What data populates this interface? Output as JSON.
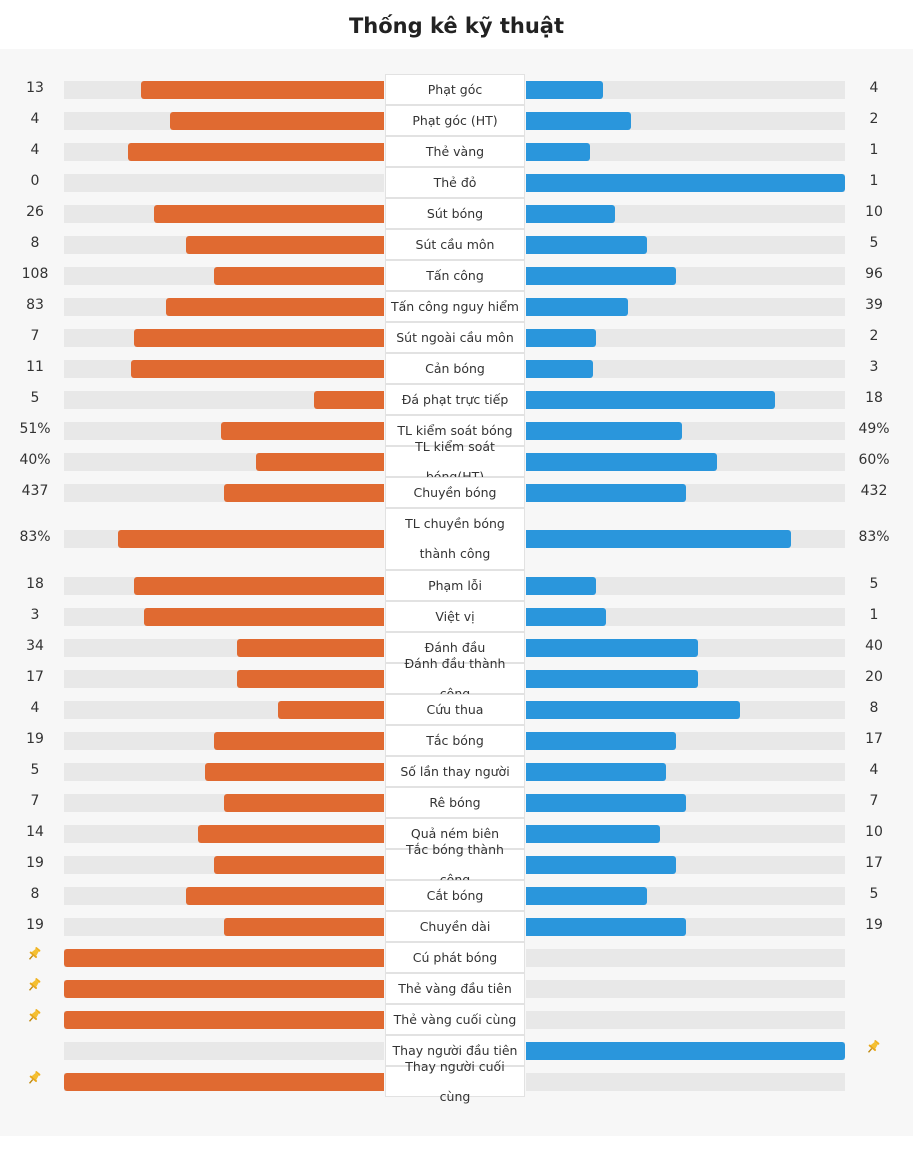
{
  "title": "Thống kê kỹ thuật",
  "colors": {
    "home": "#e06a31",
    "away": "#2a96dc",
    "track": "#e8e8e8"
  },
  "chart_data": {
    "type": "bar",
    "orientation": "diverging-horizontal",
    "series": [
      {
        "name": "home",
        "side": "left"
      },
      {
        "name": "away",
        "side": "right"
      }
    ],
    "rows": [
      {
        "label": "Phạt góc",
        "home": "13",
        "away": "4",
        "home_share": 0.76,
        "away_share": 0.24
      },
      {
        "label": "Phạt góc (HT)",
        "home": "4",
        "away": "2",
        "home_share": 0.67,
        "away_share": 0.33
      },
      {
        "label": "Thẻ vàng",
        "home": "4",
        "away": "1",
        "home_share": 0.8,
        "away_share": 0.2
      },
      {
        "label": "Thẻ đỏ",
        "home": "0",
        "away": "1",
        "home_share": 0,
        "away_share": 1
      },
      {
        "label": "Sút bóng",
        "home": "26",
        "away": "10",
        "home_share": 0.72,
        "away_share": 0.28
      },
      {
        "label": "Sút cầu môn",
        "home": "8",
        "away": "5",
        "home_share": 0.62,
        "away_share": 0.38
      },
      {
        "label": "Tấn công",
        "home": "108",
        "away": "96",
        "home_share": 0.53,
        "away_share": 0.47
      },
      {
        "label": "Tấn công nguy hiểm",
        "home": "83",
        "away": "39",
        "home_share": 0.68,
        "away_share": 0.32
      },
      {
        "label": "Sút ngoài cầu môn",
        "home": "7",
        "away": "2",
        "home_share": 0.78,
        "away_share": 0.22
      },
      {
        "label": "Cản bóng",
        "home": "11",
        "away": "3",
        "home_share": 0.79,
        "away_share": 0.21
      },
      {
        "label": "Đá phạt trực tiếp",
        "home": "5",
        "away": "18",
        "home_share": 0.22,
        "away_share": 0.78
      },
      {
        "label": "TL kiểm soát bóng",
        "home": "51%",
        "away": "49%",
        "home_share": 0.51,
        "away_share": 0.49
      },
      {
        "label": "TL kiểm soát bóng(HT)",
        "home": "40%",
        "away": "60%",
        "home_share": 0.4,
        "away_share": 0.6
      },
      {
        "label": "Chuyền bóng",
        "home": "437",
        "away": "432",
        "home_share": 0.5,
        "away_share": 0.5
      },
      {
        "label": "TL chuyền bóng thành công",
        "home": "83%",
        "away": "83%",
        "home_share": 0.83,
        "away_share": 0.83,
        "tall": true
      },
      {
        "label": "Phạm lỗi",
        "home": "18",
        "away": "5",
        "home_share": 0.78,
        "away_share": 0.22
      },
      {
        "label": "Việt vị",
        "home": "3",
        "away": "1",
        "home_share": 0.75,
        "away_share": 0.25
      },
      {
        "label": "Đánh đầu",
        "home": "34",
        "away": "40",
        "home_share": 0.46,
        "away_share": 0.54
      },
      {
        "label": "Đánh đầu thành công",
        "home": "17",
        "away": "20",
        "home_share": 0.46,
        "away_share": 0.54
      },
      {
        "label": "Cứu thua",
        "home": "4",
        "away": "8",
        "home_share": 0.33,
        "away_share": 0.67
      },
      {
        "label": "Tắc bóng",
        "home": "19",
        "away": "17",
        "home_share": 0.53,
        "away_share": 0.47
      },
      {
        "label": "Số lần thay người",
        "home": "5",
        "away": "4",
        "home_share": 0.56,
        "away_share": 0.44
      },
      {
        "label": "Rê bóng",
        "home": "7",
        "away": "7",
        "home_share": 0.5,
        "away_share": 0.5
      },
      {
        "label": "Quả ném biên",
        "home": "14",
        "away": "10",
        "home_share": 0.58,
        "away_share": 0.42
      },
      {
        "label": "Tắc bóng thành công",
        "home": "19",
        "away": "17",
        "home_share": 0.53,
        "away_share": 0.47
      },
      {
        "label": "Cắt bóng",
        "home": "8",
        "away": "5",
        "home_share": 0.62,
        "away_share": 0.38
      },
      {
        "label": "Chuyền dài",
        "home": "19",
        "away": "19",
        "home_share": 0.5,
        "away_share": 0.5
      },
      {
        "label": "Cú phát bóng",
        "home": "",
        "away": "",
        "home_share": 1,
        "away_share": 0,
        "pin": "home"
      },
      {
        "label": "Thẻ vàng đầu tiên",
        "home": "",
        "away": "",
        "home_share": 1,
        "away_share": 0,
        "pin": "home"
      },
      {
        "label": "Thẻ vàng cuối cùng",
        "home": "",
        "away": "",
        "home_share": 1,
        "away_share": 0,
        "pin": "home"
      },
      {
        "label": "Thay người đầu tiên",
        "home": "",
        "away": "",
        "home_share": 0,
        "away_share": 1,
        "pin": "away"
      },
      {
        "label": "Thay người cuối cùng",
        "home": "",
        "away": "",
        "home_share": 1,
        "away_share": 0,
        "pin": "home"
      }
    ]
  }
}
